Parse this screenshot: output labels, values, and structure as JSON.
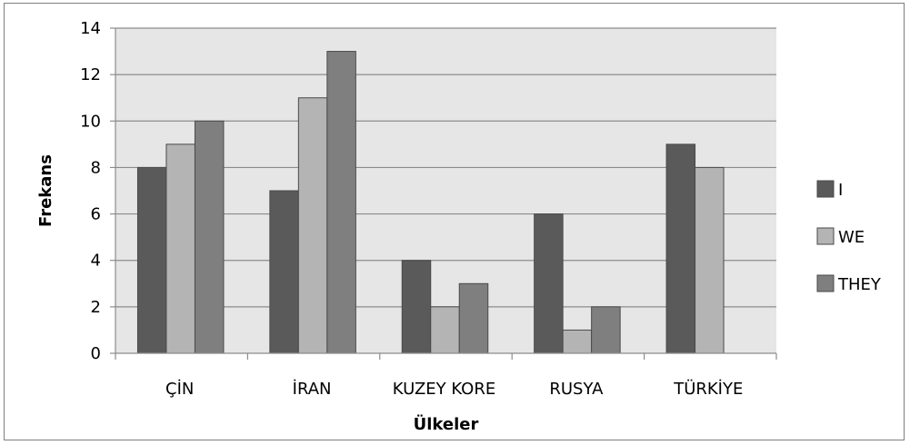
{
  "chart_data": {
    "type": "bar",
    "categories": [
      "ÇİN",
      "İRAN",
      "KUZEY KORE",
      "RUSYA",
      "TÜRKİYE"
    ],
    "series": [
      {
        "name": "I",
        "values": [
          8,
          7,
          4,
          6,
          9
        ],
        "color": "#5a5a5a"
      },
      {
        "name": "WE",
        "values": [
          9,
          11,
          2,
          1,
          8
        ],
        "color": "#b4b4b4"
      },
      {
        "name": "THEY",
        "values": [
          10,
          13,
          3,
          2,
          null
        ],
        "color": "#7f7f7f"
      }
    ],
    "xlabel": "Ülkeler",
    "ylabel": "Frekans",
    "ylim": [
      0,
      14
    ],
    "yticks": [
      "0",
      "2",
      "4",
      "6",
      "8",
      "10",
      "12",
      "14"
    ],
    "grid": true,
    "legend_position": "right",
    "plot_background": "#e6e6e6"
  }
}
